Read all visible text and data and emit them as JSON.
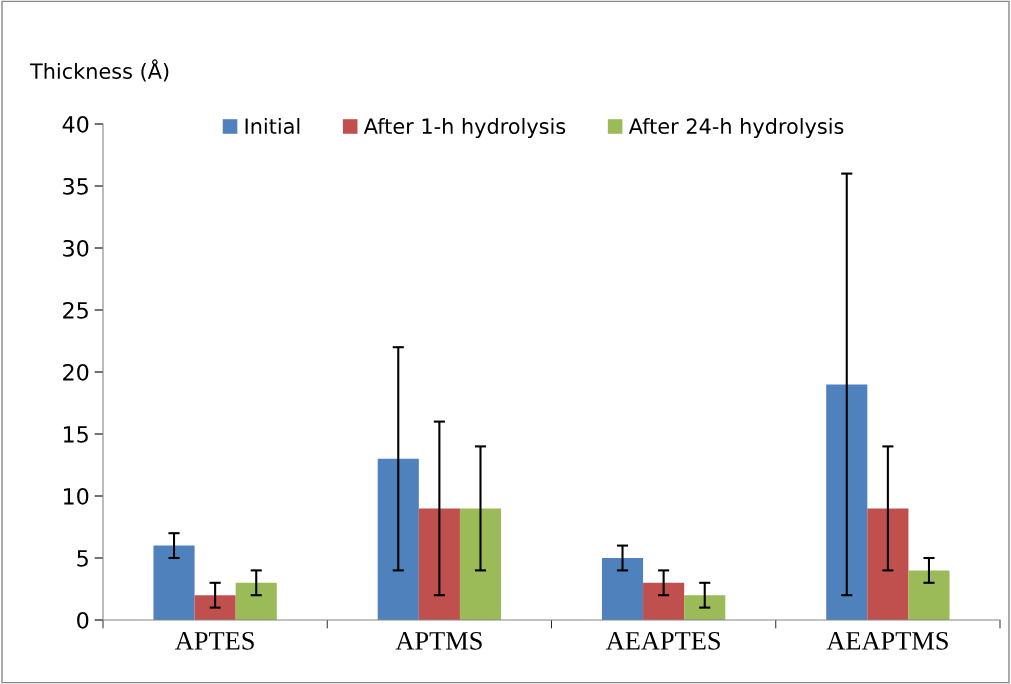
{
  "chart_data": {
    "type": "bar",
    "ylabel": "Thickness (Å)",
    "categories": [
      "APTES",
      "APTMS",
      "AEAPTES",
      "AEAPTMS"
    ],
    "series": [
      {
        "name": "Initial",
        "color": "#4f81bd",
        "values": [
          6,
          13,
          5,
          19
        ],
        "errors": [
          1,
          9,
          1,
          17
        ]
      },
      {
        "name": "After 1-h hydrolysis",
        "color": "#c0504d",
        "values": [
          2,
          9,
          3,
          9
        ],
        "errors": [
          1,
          7,
          1,
          5
        ]
      },
      {
        "name": "After 24-h hydrolysis",
        "color": "#9bbb59",
        "values": [
          3,
          9,
          2,
          4
        ],
        "errors": [
          1,
          5,
          1,
          1
        ]
      }
    ],
    "ylim": [
      0,
      40
    ],
    "yticks": [
      0,
      5,
      10,
      15,
      20,
      25,
      30,
      35,
      40
    ],
    "grid": false,
    "legend": "top"
  }
}
